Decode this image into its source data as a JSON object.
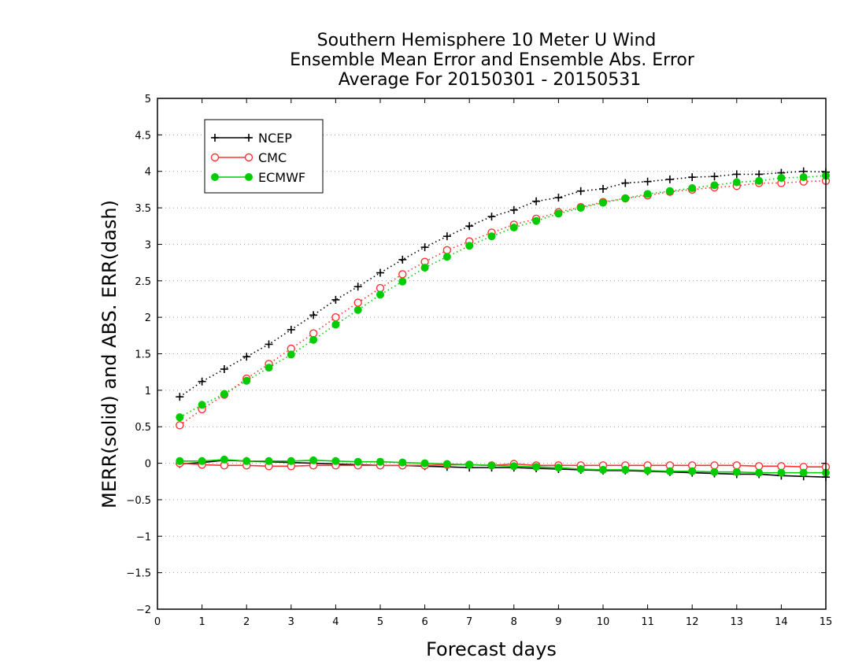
{
  "chart_data": {
    "type": "line",
    "title": [
      "Southern Hemisphere 10 Meter U Wind",
      "Ensemble Mean Error and Ensemble Abs. Error",
      "Average For 20150301 - 20150531"
    ],
    "xlabel": "Forecast days",
    "ylabel": "MERR(solid) and ABS. ERR(dash)",
    "xlim": [
      0,
      15
    ],
    "ylim": [
      -2,
      5
    ],
    "xticks": [
      0,
      1,
      2,
      3,
      4,
      5,
      6,
      7,
      8,
      9,
      10,
      11,
      12,
      13,
      14,
      15
    ],
    "yticks": [
      -2,
      -1.5,
      -1,
      -0.5,
      0,
      0.5,
      1,
      1.5,
      2,
      2.5,
      3,
      3.5,
      4,
      4.5,
      5
    ],
    "grid": "horizontal dotted",
    "legend_position": "top-left",
    "x": [
      0.5,
      1,
      1.5,
      2,
      2.5,
      3,
      3.5,
      4,
      4.5,
      5,
      5.5,
      6,
      6.5,
      7,
      7.5,
      8,
      8.5,
      9,
      9.5,
      10,
      10.5,
      11,
      11.5,
      12,
      12.5,
      13,
      13.5,
      14,
      14.5,
      15
    ],
    "series": [
      {
        "name": "NCEP",
        "color": "#000000",
        "marker": "plus",
        "abs_error": [
          0.91,
          1.12,
          1.29,
          1.46,
          1.63,
          1.83,
          2.03,
          2.24,
          2.42,
          2.61,
          2.79,
          2.96,
          3.11,
          3.25,
          3.38,
          3.47,
          3.59,
          3.64,
          3.73,
          3.76,
          3.84,
          3.86,
          3.89,
          3.92,
          3.93,
          3.96,
          3.96,
          3.98,
          4.0,
          3.99
        ],
        "mean_error": [
          -0.01,
          0.01,
          0.04,
          0.03,
          0.02,
          0.01,
          0.0,
          -0.01,
          -0.02,
          -0.03,
          -0.03,
          -0.04,
          -0.05,
          -0.06,
          -0.06,
          -0.06,
          -0.07,
          -0.08,
          -0.09,
          -0.1,
          -0.1,
          -0.11,
          -0.12,
          -0.13,
          -0.14,
          -0.15,
          -0.15,
          -0.17,
          -0.18,
          -0.19
        ]
      },
      {
        "name": "CMC",
        "color": "#ff3333",
        "marker": "open-circle",
        "abs_error": [
          0.52,
          0.74,
          0.94,
          1.16,
          1.36,
          1.57,
          1.78,
          2.0,
          2.2,
          2.4,
          2.59,
          2.76,
          2.92,
          3.04,
          3.16,
          3.27,
          3.35,
          3.44,
          3.51,
          3.58,
          3.63,
          3.67,
          3.72,
          3.75,
          3.78,
          3.8,
          3.84,
          3.84,
          3.86,
          3.87
        ],
        "mean_error": [
          0.0,
          -0.02,
          -0.03,
          -0.03,
          -0.04,
          -0.04,
          -0.03,
          -0.03,
          -0.03,
          -0.03,
          -0.03,
          -0.03,
          -0.02,
          -0.02,
          -0.03,
          -0.01,
          -0.03,
          -0.03,
          -0.03,
          -0.03,
          -0.03,
          -0.03,
          -0.03,
          -0.03,
          -0.03,
          -0.03,
          -0.04,
          -0.04,
          -0.05,
          -0.05
        ]
      },
      {
        "name": "ECMWF",
        "color": "#00cc00",
        "marker": "filled-circle",
        "abs_error": [
          0.63,
          0.8,
          0.95,
          1.13,
          1.31,
          1.49,
          1.69,
          1.9,
          2.1,
          2.31,
          2.49,
          2.68,
          2.83,
          2.98,
          3.11,
          3.23,
          3.32,
          3.42,
          3.5,
          3.57,
          3.63,
          3.69,
          3.73,
          3.77,
          3.81,
          3.85,
          3.87,
          3.91,
          3.92,
          3.94
        ],
        "mean_error": [
          0.03,
          0.03,
          0.05,
          0.03,
          0.03,
          0.03,
          0.04,
          0.03,
          0.02,
          0.02,
          0.01,
          0.0,
          -0.01,
          -0.02,
          -0.03,
          -0.04,
          -0.05,
          -0.06,
          -0.08,
          -0.09,
          -0.09,
          -0.1,
          -0.11,
          -0.11,
          -0.12,
          -0.12,
          -0.13,
          -0.13,
          -0.13,
          -0.13
        ]
      }
    ]
  }
}
